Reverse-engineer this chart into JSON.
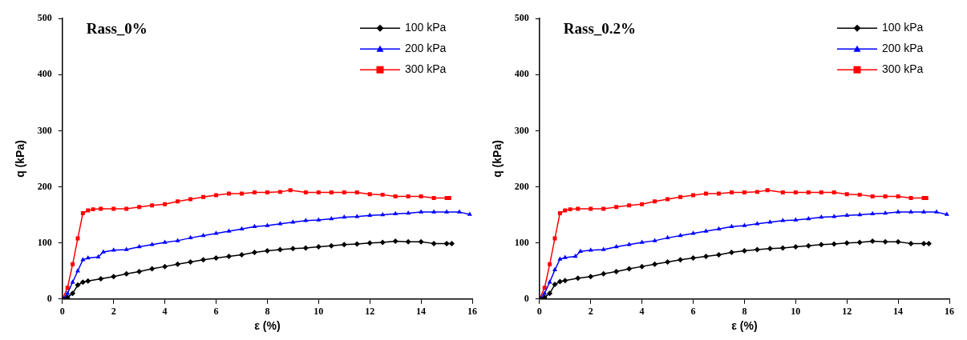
{
  "chart_data": [
    {
      "type": "line",
      "title": "Rass_0%",
      "xlabel": "ε (%)",
      "ylabel": "q (kPa)",
      "xlim": [
        0,
        16
      ],
      "xticks": [
        0,
        2,
        4,
        6,
        8,
        10,
        12,
        14,
        16
      ],
      "ylim": [
        0,
        500
      ],
      "yticks": [
        0,
        100,
        200,
        300,
        400,
        500
      ],
      "grid": false,
      "legend": "top right",
      "line_style": "solid",
      "series": [
        {
          "name": "100 kPa",
          "color": "#000000",
          "marker": "diamond",
          "x": [
            0,
            0.2,
            0.4,
            0.6,
            0.8,
            1,
            1.5,
            2,
            2.5,
            3,
            3.5,
            4,
            4.5,
            5,
            5.5,
            6,
            6.5,
            7,
            7.5,
            8,
            8.5,
            9,
            9.5,
            10,
            10.5,
            11,
            11.5,
            12,
            12.5,
            13,
            13.5,
            14,
            14.5,
            15,
            15.2
          ],
          "values": [
            0,
            3,
            10,
            25,
            30,
            32,
            36,
            40,
            45,
            49,
            54,
            58,
            62,
            66,
            70,
            73,
            76,
            79,
            83,
            86,
            88,
            90,
            91,
            93,
            95,
            97,
            98,
            100,
            101,
            103,
            102,
            102,
            99,
            99,
            99
          ]
        },
        {
          "name": "200 kPa",
          "color": "#0000ff",
          "marker": "triangle",
          "x": [
            0,
            0.2,
            0.4,
            0.6,
            0.8,
            1,
            1.4,
            1.6,
            2,
            2.5,
            3,
            3.5,
            4,
            4.5,
            5,
            5.5,
            6,
            6.5,
            7,
            7.5,
            8,
            8.5,
            9,
            9.5,
            10,
            10.5,
            11,
            11.5,
            12,
            12.5,
            13,
            13.5,
            14,
            14.5,
            15,
            15.5,
            15.9
          ],
          "values": [
            0,
            10,
            30,
            50,
            70,
            73,
            75,
            84,
            87,
            88,
            93,
            97,
            101,
            104,
            109,
            113,
            117,
            121,
            125,
            129,
            131,
            134,
            137,
            140,
            141,
            143,
            146,
            147,
            149,
            150,
            152,
            153,
            155,
            155,
            155,
            155,
            151
          ]
        },
        {
          "name": "300 kPa",
          "color": "#ff0000",
          "marker": "square",
          "x": [
            0,
            0.2,
            0.4,
            0.6,
            0.8,
            1,
            1.2,
            1.5,
            2,
            2.5,
            3,
            3.5,
            4,
            4.5,
            5,
            5.5,
            6,
            6.5,
            7,
            7.5,
            8,
            8.5,
            8.9,
            9.5,
            10,
            10.5,
            11,
            11.5,
            12,
            12.5,
            13,
            13.5,
            14,
            14.5,
            15,
            15.1
          ],
          "values": [
            0,
            20,
            62,
            108,
            153,
            158,
            160,
            161,
            161,
            161,
            164,
            167,
            169,
            174,
            178,
            182,
            185,
            188,
            188,
            190,
            190,
            191,
            194,
            190,
            190,
            190,
            190,
            190,
            187,
            186,
            183,
            183,
            183,
            180,
            180,
            180
          ]
        }
      ]
    },
    {
      "type": "line",
      "title": "Rass_0.2%",
      "xlabel": "ε (%)",
      "ylabel": "q (kPa)",
      "xlim": [
        0,
        16
      ],
      "xticks": [
        0,
        2,
        4,
        6,
        8,
        10,
        12,
        14,
        16
      ],
      "ylim": [
        0,
        500
      ],
      "yticks": [
        0,
        100,
        200,
        300,
        400,
        500
      ],
      "grid": false,
      "legend": "top right",
      "line_style": "solid",
      "series": [
        {
          "name": "100 kPa",
          "color": "#000000",
          "marker": "diamond",
          "x": [
            0,
            0.2,
            0.4,
            0.6,
            0.8,
            1,
            1.5,
            2,
            2.5,
            3,
            3.5,
            4,
            4.5,
            5,
            5.5,
            6,
            6.5,
            7,
            7.5,
            8,
            8.5,
            9,
            9.5,
            10,
            10.5,
            11,
            11.5,
            12,
            12.5,
            13,
            13.5,
            14,
            14.5,
            15,
            15.2
          ],
          "values": [
            0,
            3,
            10,
            26,
            31,
            33,
            37,
            40,
            45,
            49,
            54,
            58,
            62,
            66,
            70,
            73,
            76,
            79,
            83,
            86,
            88,
            90,
            91,
            93,
            95,
            97,
            98,
            100,
            101,
            103,
            102,
            102,
            99,
            99,
            99
          ]
        },
        {
          "name": "200 kPa",
          "color": "#0000ff",
          "marker": "triangle",
          "x": [
            0,
            0.2,
            0.4,
            0.6,
            0.8,
            1,
            1.4,
            1.6,
            2,
            2.5,
            3,
            3.5,
            4,
            4.5,
            5,
            5.5,
            6,
            6.5,
            7,
            7.5,
            8,
            8.5,
            9,
            9.5,
            10,
            10.5,
            11,
            11.5,
            12,
            12.5,
            13,
            13.5,
            14,
            14.5,
            15,
            15.5,
            15.9
          ],
          "values": [
            0,
            10,
            30,
            52,
            71,
            74,
            76,
            85,
            87,
            88,
            93,
            97,
            101,
            104,
            109,
            113,
            117,
            121,
            125,
            129,
            131,
            134,
            137,
            140,
            141,
            143,
            146,
            147,
            149,
            150,
            152,
            153,
            155,
            155,
            155,
            155,
            151
          ]
        },
        {
          "name": "300 kPa",
          "color": "#ff0000",
          "marker": "square",
          "x": [
            0,
            0.2,
            0.4,
            0.6,
            0.8,
            1,
            1.2,
            1.5,
            2,
            2.5,
            3,
            3.5,
            4,
            4.5,
            5,
            5.5,
            6,
            6.5,
            7,
            7.5,
            8,
            8.5,
            8.9,
            9.5,
            10,
            10.5,
            11,
            11.5,
            12,
            12.5,
            13,
            13.5,
            14,
            14.5,
            15,
            15.1
          ],
          "values": [
            0,
            20,
            62,
            108,
            153,
            158,
            160,
            161,
            161,
            161,
            164,
            167,
            169,
            174,
            178,
            182,
            185,
            188,
            188,
            190,
            190,
            191,
            194,
            190,
            190,
            190,
            190,
            190,
            187,
            186,
            183,
            183,
            183,
            180,
            180,
            180
          ]
        }
      ]
    }
  ]
}
